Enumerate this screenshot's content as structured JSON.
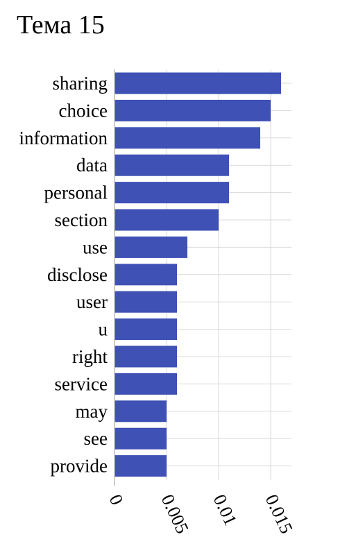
{
  "chart_data": {
    "type": "bar",
    "orientation": "horizontal",
    "title": "Тема 15",
    "xlabel": "",
    "ylabel": "",
    "categories": [
      "sharing",
      "choice",
      "information",
      "data",
      "personal",
      "section",
      "use",
      "disclose",
      "user",
      "u",
      "right",
      "service",
      "may",
      "see",
      "provide"
    ],
    "values": [
      0.016,
      0.015,
      0.014,
      0.011,
      0.011,
      0.01,
      0.007,
      0.006,
      0.006,
      0.006,
      0.006,
      0.006,
      0.005,
      0.005,
      0.005
    ],
    "xlim": [
      0,
      0.017
    ],
    "xticks": [
      0,
      0.005,
      0.01,
      0.015
    ],
    "xtick_labels": [
      "0",
      "0.005",
      "0.01",
      "0.015"
    ],
    "grid": true,
    "bar_color": "#3F51B5",
    "grid_color": "#D9D9D9",
    "axis_color": "#BBBBBB"
  }
}
